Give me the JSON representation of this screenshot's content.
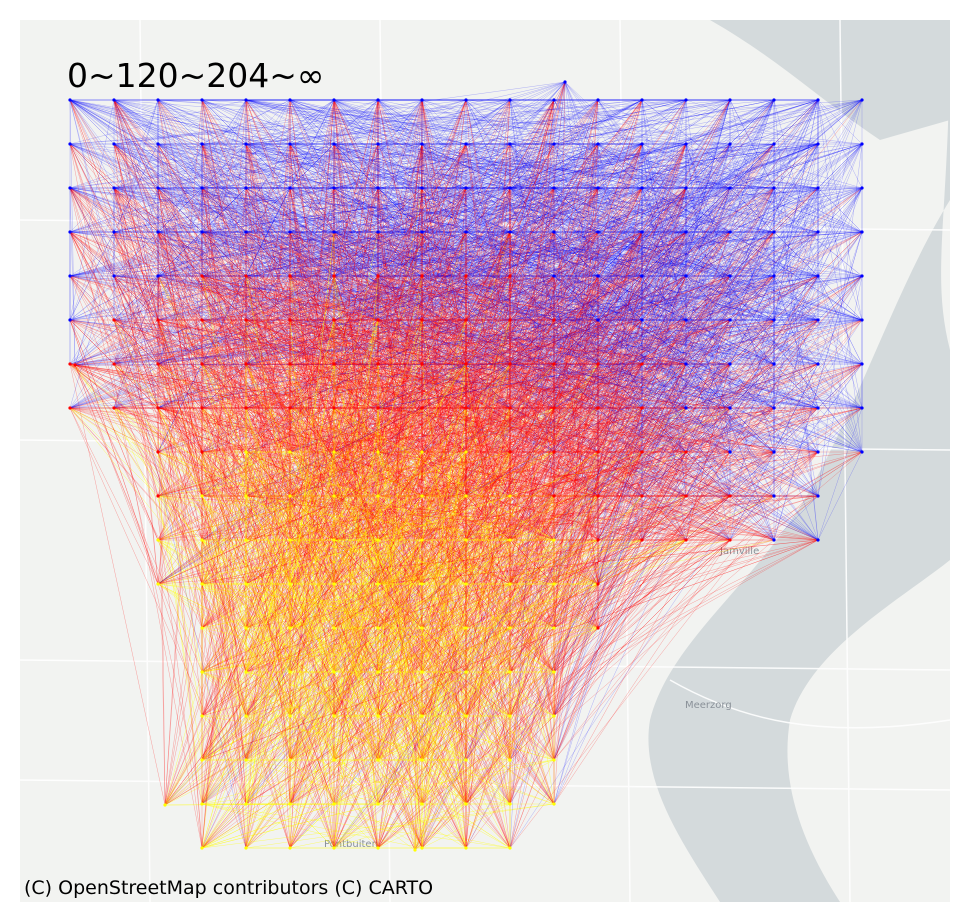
{
  "legend_title": "0~120~204~∞",
  "attribution": "(C) OpenStreetMap contributors (C) CARTO",
  "places": [
    "Meerzorg",
    "Pontbuiten",
    "Jamville"
  ],
  "colors": {
    "background": "#f2f3f1",
    "water": "#d4dadc",
    "streets": "#ffffff",
    "band_low": "#ffff00",
    "band_mid": "#ff0000",
    "band_high": "#0000ff"
  },
  "bands": [
    "0",
    "120",
    "204",
    "∞"
  ]
}
